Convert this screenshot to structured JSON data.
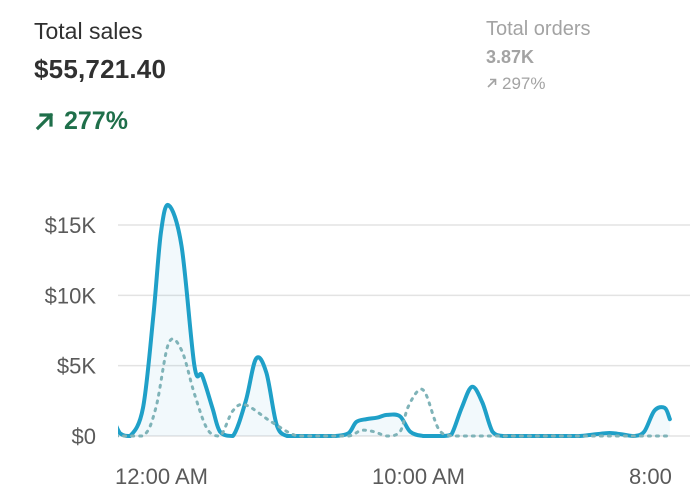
{
  "primary_metric": {
    "label": "Total sales",
    "value": "$55,721.40",
    "change": "277%"
  },
  "secondary_metric": {
    "label": "Total orders",
    "value": "3.87K",
    "change": "297%"
  },
  "colors": {
    "primary_line": "#1fa0c8",
    "comparison_line": "#7fb3b8",
    "grid": "#e3e3e3",
    "positive": "#1f6f4a",
    "muted": "#a3a3a3"
  },
  "icons": {
    "primary_change": "arrow-up-right-icon",
    "secondary_change": "arrow-up-right-icon"
  },
  "chart_data": {
    "type": "line",
    "ylim": [
      0,
      16000
    ],
    "y_ticks": [
      {
        "value": 0,
        "label": "$0"
      },
      {
        "value": 5000,
        "label": "$5K"
      },
      {
        "value": 10000,
        "label": "$10K"
      },
      {
        "value": 15000,
        "label": "$15K"
      }
    ],
    "x_ticks": [
      {
        "x": 0,
        "label": "12:00 AM"
      },
      {
        "x": 10,
        "label": "10:00 AM"
      },
      {
        "x": 20,
        "label": "8:00"
      }
    ],
    "xlim": [
      -2,
      20.5
    ],
    "grid": true,
    "series": [
      {
        "style": "solid",
        "x": [
          -2,
          -1.7,
          -1.3,
          -0.9,
          -0.5,
          0,
          0.4,
          0.7,
          1,
          1.5,
          2,
          2.3,
          2.7,
          3,
          3.5,
          4,
          4.4,
          4.8,
          5.2,
          5.6,
          6,
          6.5,
          7,
          7.5,
          8,
          8.3,
          8.7,
          9.1,
          9.5,
          10,
          10.4,
          10.9,
          11.3,
          11.7,
          12,
          12.4,
          12.8,
          13.2,
          13.6,
          14,
          14.5,
          15,
          15.5,
          16,
          16.5,
          17,
          17.5,
          18,
          18.3,
          18.7,
          19.1,
          19.5,
          19.9,
          20.3,
          20.5
        ],
        "values": [
          5000,
          4600,
          2000,
          200,
          0,
          2000,
          8500,
          14500,
          16400,
          13500,
          5000,
          4300,
          2000,
          300,
          0,
          2500,
          5500,
          4500,
          800,
          0,
          0,
          0,
          0,
          0,
          200,
          1000,
          1200,
          1300,
          1500,
          1400,
          300,
          0,
          0,
          0,
          100,
          2000,
          3500,
          2400,
          300,
          0,
          0,
          0,
          0,
          0,
          0,
          0,
          100,
          200,
          200,
          100,
          0,
          300,
          1800,
          2000,
          1200
        ]
      },
      {
        "style": "dotted",
        "x": [
          -2,
          -1,
          0,
          0.5,
          1,
          1.5,
          2,
          2.5,
          3,
          3.5,
          4,
          5,
          6,
          7,
          8,
          8.5,
          9,
          9.5,
          10,
          10.3,
          10.7,
          11,
          11.5,
          12,
          12.5,
          13,
          14,
          15,
          16,
          17,
          18,
          19,
          20,
          20.5
        ],
        "values": [
          0,
          0,
          0,
          2000,
          6600,
          6100,
          3000,
          500,
          0,
          1800,
          2200,
          1000,
          0,
          0,
          0,
          400,
          300,
          0,
          300,
          2000,
          3200,
          3000,
          500,
          0,
          0,
          0,
          0,
          0,
          0,
          0,
          0,
          0,
          0,
          0
        ]
      }
    ]
  }
}
